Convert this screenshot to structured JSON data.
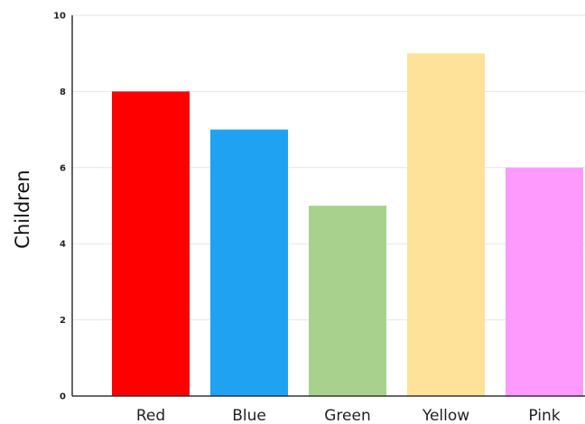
{
  "chart_data": {
    "type": "bar",
    "categories": [
      "Red",
      "Blue",
      "Green",
      "Yellow",
      "Pink"
    ],
    "values": [
      8,
      7,
      5,
      9,
      6
    ],
    "colors": [
      "#fe0000",
      "#1fa2f2",
      "#a8d18d",
      "#fee29a",
      "#fe99fe"
    ],
    "title": "",
    "xlabel": "",
    "ylabel": "Children",
    "ylim": [
      0,
      10
    ],
    "yticks": [
      0,
      2,
      4,
      6,
      8,
      10
    ],
    "grid": true,
    "legend": "none"
  }
}
